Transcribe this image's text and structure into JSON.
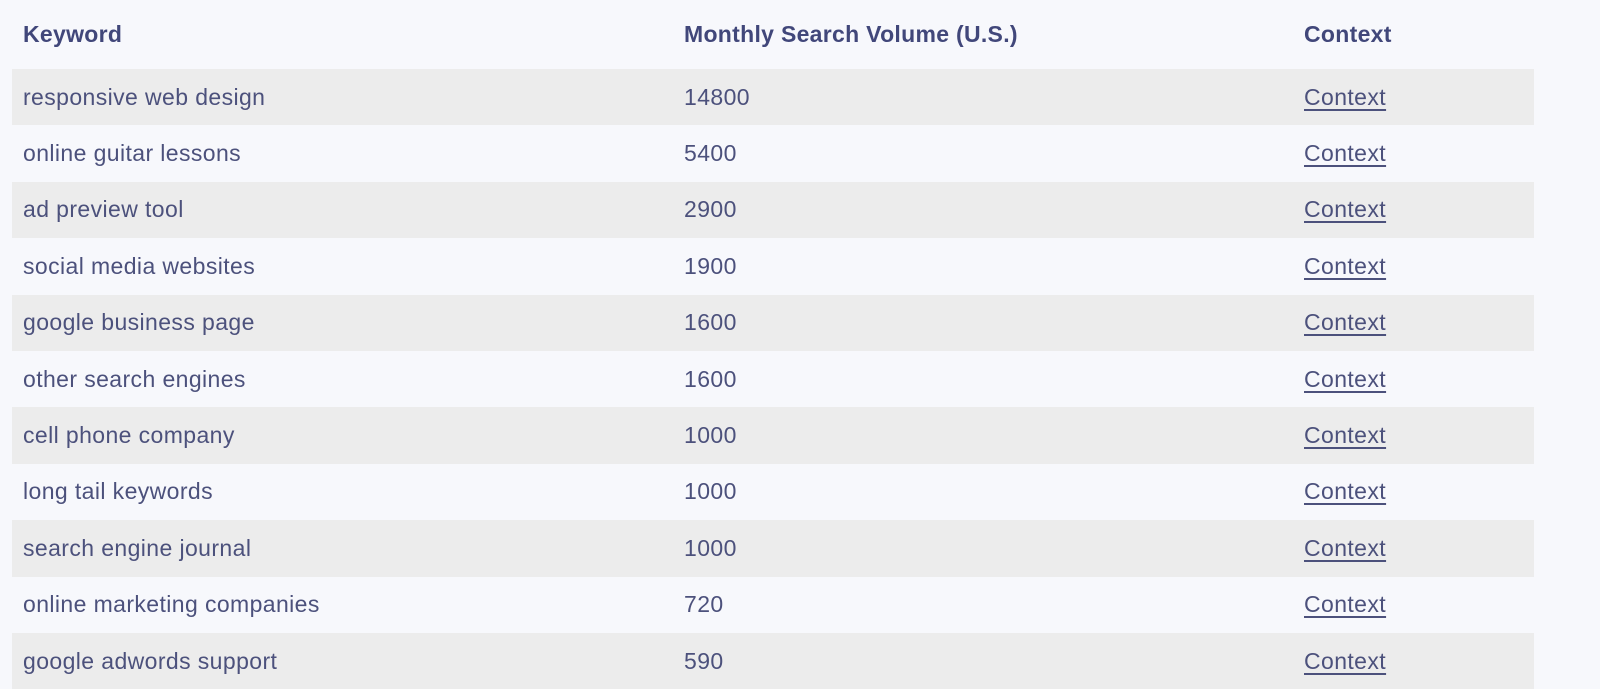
{
  "table": {
    "columns": {
      "keyword": "Keyword",
      "volume": "Monthly Search Volume (U.S.)",
      "context": "Context"
    },
    "rows": [
      {
        "keyword": "responsive web design",
        "volume": "14800",
        "context_label": "Context"
      },
      {
        "keyword": "online guitar lessons",
        "volume": "5400",
        "context_label": "Context"
      },
      {
        "keyword": "ad preview tool",
        "volume": "2900",
        "context_label": "Context"
      },
      {
        "keyword": "social media websites",
        "volume": "1900",
        "context_label": "Context"
      },
      {
        "keyword": "google business page",
        "volume": "1600",
        "context_label": "Context"
      },
      {
        "keyword": "other search engines",
        "volume": "1600",
        "context_label": "Context"
      },
      {
        "keyword": "cell phone company",
        "volume": "1000",
        "context_label": "Context"
      },
      {
        "keyword": "long tail keywords",
        "volume": "1000",
        "context_label": "Context"
      },
      {
        "keyword": "search engine journal",
        "volume": "1000",
        "context_label": "Context"
      },
      {
        "keyword": "online marketing companies",
        "volume": "720",
        "context_label": "Context"
      },
      {
        "keyword": "google adwords support",
        "volume": "590",
        "context_label": "Context"
      }
    ]
  },
  "colors": {
    "page_background": "#f7f8fc",
    "row_stripe": "#ececec",
    "body_text": "#4c517c",
    "header_text": "#41477a",
    "link_text": "#4c517c"
  }
}
